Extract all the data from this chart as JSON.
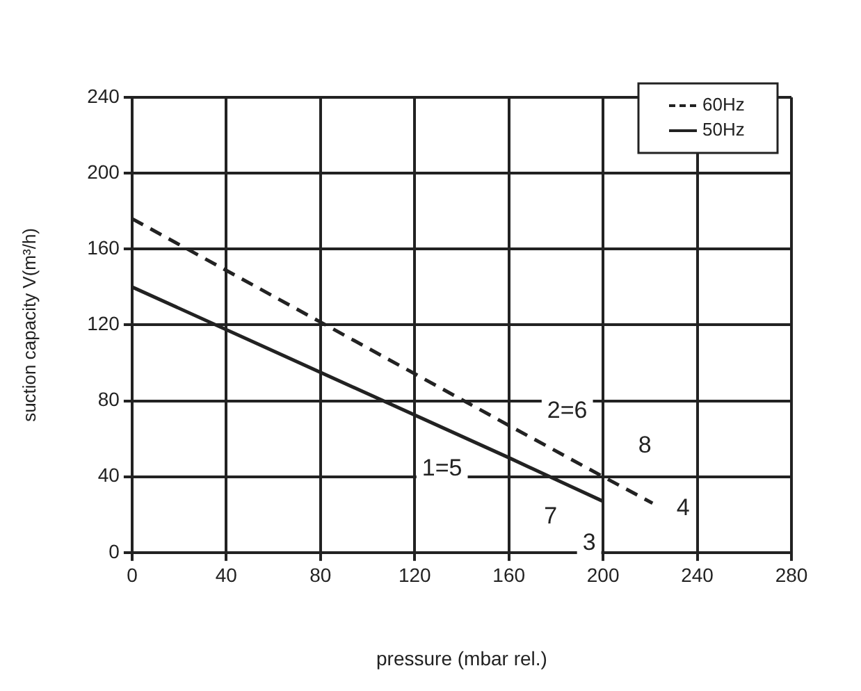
{
  "chart_data": {
    "type": "line",
    "xlabel": "pressure (mbar rel.)",
    "ylabel": "suction capacity V(m³/h)",
    "series": [
      {
        "name": "60Hz",
        "color": "#222222",
        "line_style": "dashed",
        "x": [
          0,
          160,
          200,
          221
        ],
        "values": [
          176,
          67,
          40,
          26
        ]
      },
      {
        "name": "50Hz",
        "color": "#222222",
        "line_style": "solid",
        "x": [
          0,
          160,
          186,
          200
        ],
        "values": [
          140,
          50,
          35,
          27
        ]
      }
    ],
    "xlim": [
      0,
      280
    ],
    "xticks": [
      0,
      40,
      80,
      120,
      160,
      200,
      240,
      280
    ],
    "ylim": [
      0,
      240
    ],
    "yticks": [
      0,
      40,
      80,
      120,
      160,
      200,
      240
    ],
    "grid": true,
    "legend": "top right",
    "marker": "none",
    "annotations": [
      {
        "text": "1=5",
        "x": 160,
        "y": 50
      },
      {
        "text": "2=6",
        "x": 160,
        "y": 67
      },
      {
        "text": "7",
        "x": 186,
        "y": 35
      },
      {
        "text": "3",
        "x": 200,
        "y": 27
      },
      {
        "text": "8",
        "x": 200,
        "y": 40
      },
      {
        "text": "4",
        "x": 221,
        "y": 26
      }
    ]
  }
}
